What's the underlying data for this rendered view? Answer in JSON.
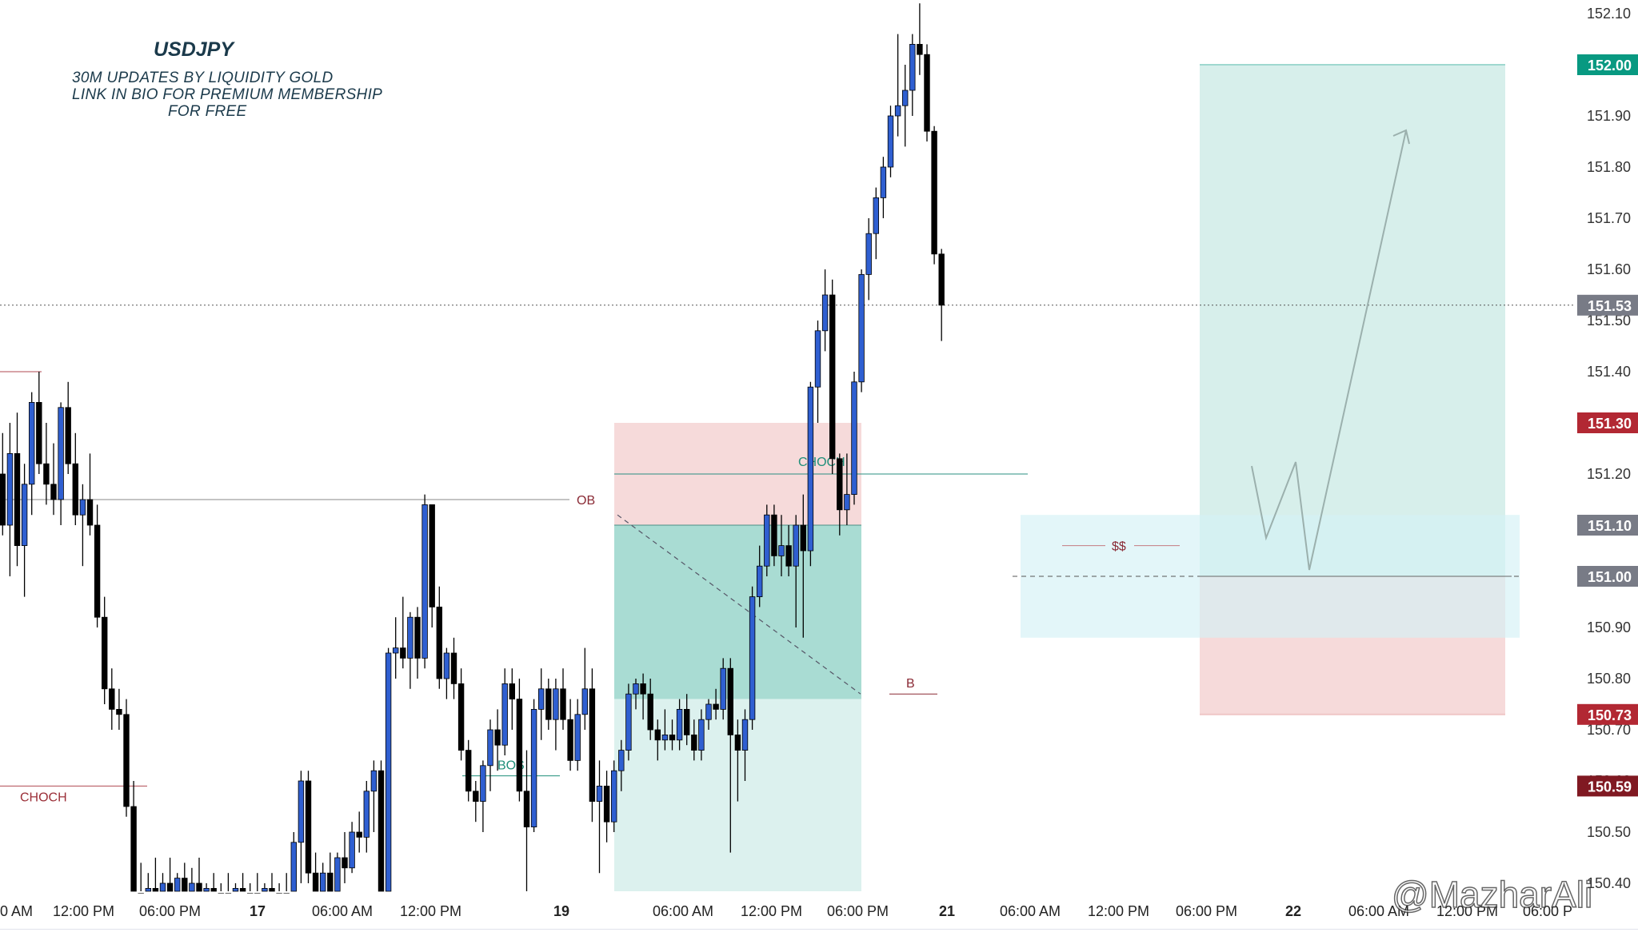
{
  "header": {
    "symbol": "USDJPY",
    "line1": "30M UPDATES BY LIQUIDITY GOLD",
    "line2": "LINK IN BIO FOR PREMIUM MEMBERSHIP",
    "line3": "FOR FREE"
  },
  "watermark": "@MazharAli",
  "colors": {
    "bull": "#2f5fd1",
    "bear": "#000000",
    "tp_zone": "#b8e4dc",
    "sl_zone": "#f6dada",
    "fvg_zone": "#d4f1f6",
    "last_price": "#787b86",
    "target_price": "#089981",
    "stop_price": "#b22833",
    "deep_stop": "#801922"
  },
  "chart_data": {
    "type": "candlestick",
    "symbol": "USDJPY",
    "timeframe": "30m",
    "y_axis": {
      "range": [
        150.35,
        152.12
      ],
      "ticks": [
        "152.10",
        "152.00",
        "151.90",
        "151.80",
        "151.70",
        "151.60",
        "151.50",
        "151.40",
        "151.30",
        "151.20",
        "151.10",
        "151.00",
        "150.90",
        "150.80",
        "150.70",
        "150.60",
        "150.50",
        "150.40"
      ]
    },
    "x_axis": {
      "ticks": [
        "0 AM",
        "12:00 PM",
        "06:00 PM",
        "17",
        "06:00 AM",
        "12:00 PM",
        "19",
        "06:00 AM",
        "12:00 PM",
        "06:00 PM",
        "21",
        "06:00 AM",
        "12:00 PM",
        "06:00 PM",
        "22",
        "06:00 AM",
        "12:00 PM",
        "06:00 P"
      ]
    },
    "price_badges": [
      {
        "label": "152.00",
        "value": 152.0,
        "kind": "target"
      },
      {
        "label": "151.53",
        "value": 151.53,
        "kind": "last"
      },
      {
        "label": "151.30",
        "value": 151.3,
        "kind": "stop"
      },
      {
        "label": "151.10",
        "value": 151.1,
        "kind": "gray"
      },
      {
        "label": "151.00",
        "value": 151.0,
        "kind": "gray"
      },
      {
        "label": "150.73",
        "value": 150.73,
        "kind": "stop"
      },
      {
        "label": "150.59",
        "value": 150.59,
        "kind": "deepstop"
      }
    ],
    "annotations": {
      "choch_left": "CHOCH",
      "ob": "OB",
      "bos": "BOS",
      "choch_mid": "CHOCH",
      "b": "B",
      "liquidity": "$$"
    },
    "zones": {
      "sell_setup": {
        "entry": 151.1,
        "stop": 151.3,
        "target": 150.37
      },
      "buy_setup": {
        "entry": 151.0,
        "stop": 150.73,
        "target": 152.0
      },
      "fvg": {
        "top": 151.12,
        "bottom": 150.88
      }
    },
    "candles": [
      [
        151.2,
        151.28,
        151.08,
        151.1
      ],
      [
        151.1,
        151.3,
        151.0,
        151.24
      ],
      [
        151.24,
        151.32,
        151.02,
        151.06
      ],
      [
        151.06,
        151.22,
        150.96,
        151.18
      ],
      [
        151.18,
        151.36,
        151.12,
        151.34
      ],
      [
        151.34,
        151.4,
        151.2,
        151.22
      ],
      [
        151.22,
        151.3,
        151.14,
        151.18
      ],
      [
        151.18,
        151.26,
        151.12,
        151.15
      ],
      [
        151.15,
        151.34,
        151.1,
        151.33
      ],
      [
        151.33,
        151.38,
        151.2,
        151.22
      ],
      [
        151.22,
        151.28,
        151.1,
        151.12
      ],
      [
        151.12,
        151.18,
        151.02,
        151.15
      ],
      [
        151.15,
        151.24,
        151.08,
        151.1
      ],
      [
        151.1,
        151.14,
        150.9,
        150.92
      ],
      [
        150.92,
        150.96,
        150.75,
        150.78
      ],
      [
        150.78,
        150.82,
        150.7,
        150.74
      ],
      [
        150.74,
        150.78,
        150.7,
        150.73
      ],
      [
        150.73,
        150.76,
        150.53,
        150.55
      ],
      [
        150.55,
        150.6,
        150.36,
        150.38
      ],
      [
        150.38,
        150.44,
        150.35,
        150.37
      ],
      [
        150.37,
        150.42,
        150.35,
        150.39
      ],
      [
        150.39,
        150.45,
        150.35,
        150.36
      ],
      [
        150.36,
        150.42,
        150.35,
        150.4
      ],
      [
        150.4,
        150.45,
        150.36,
        150.37
      ],
      [
        150.37,
        150.42,
        150.35,
        150.41
      ],
      [
        150.41,
        150.44,
        150.36,
        150.37
      ],
      [
        150.37,
        150.43,
        150.35,
        150.4
      ],
      [
        150.4,
        150.45,
        150.35,
        150.37
      ],
      [
        150.37,
        150.4,
        150.35,
        150.39
      ],
      [
        150.39,
        150.42,
        150.35,
        150.36
      ],
      [
        150.36,
        150.4,
        150.35,
        150.38
      ],
      [
        150.38,
        150.42,
        150.35,
        150.37
      ],
      [
        150.37,
        150.4,
        150.35,
        150.39
      ],
      [
        150.39,
        150.42,
        150.35,
        150.36
      ],
      [
        150.36,
        150.4,
        150.35,
        150.38
      ],
      [
        150.38,
        150.42,
        150.35,
        150.37
      ],
      [
        150.37,
        150.4,
        150.35,
        150.39
      ],
      [
        150.39,
        150.42,
        150.35,
        150.36
      ],
      [
        150.36,
        150.4,
        150.35,
        150.38
      ],
      [
        150.38,
        150.42,
        150.35,
        150.37
      ],
      [
        150.37,
        150.5,
        150.35,
        150.48
      ],
      [
        150.48,
        150.62,
        150.4,
        150.6
      ],
      [
        150.6,
        150.62,
        150.4,
        150.42
      ],
      [
        150.42,
        150.46,
        150.35,
        150.37
      ],
      [
        150.37,
        150.44,
        150.35,
        150.42
      ],
      [
        150.42,
        150.46,
        150.36,
        150.38
      ],
      [
        150.38,
        150.46,
        150.35,
        150.45
      ],
      [
        150.45,
        150.5,
        150.4,
        150.43
      ],
      [
        150.43,
        150.52,
        150.42,
        150.5
      ],
      [
        150.5,
        150.54,
        150.46,
        150.49
      ],
      [
        150.49,
        150.6,
        150.46,
        150.58
      ],
      [
        150.58,
        150.64,
        150.5,
        150.62
      ],
      [
        150.62,
        150.64,
        150.35,
        150.37
      ],
      [
        150.37,
        150.86,
        150.35,
        150.85
      ],
      [
        150.85,
        150.92,
        150.8,
        150.86
      ],
      [
        150.86,
        150.96,
        150.82,
        150.84
      ],
      [
        150.84,
        150.93,
        150.78,
        150.92
      ],
      [
        150.92,
        150.94,
        150.8,
        150.84
      ],
      [
        150.84,
        151.16,
        150.82,
        151.14
      ],
      [
        151.14,
        151.14,
        150.9,
        150.94
      ],
      [
        150.94,
        150.98,
        150.78,
        150.8
      ],
      [
        150.8,
        150.86,
        150.76,
        150.85
      ],
      [
        150.85,
        150.88,
        150.76,
        150.79
      ],
      [
        150.79,
        150.82,
        150.64,
        150.66
      ],
      [
        150.66,
        150.68,
        150.56,
        150.58
      ],
      [
        150.58,
        150.6,
        150.52,
        150.56
      ],
      [
        150.56,
        150.64,
        150.5,
        150.63
      ],
      [
        150.63,
        150.72,
        150.58,
        150.7
      ],
      [
        150.7,
        150.74,
        150.62,
        150.67
      ],
      [
        150.67,
        150.82,
        150.65,
        150.79
      ],
      [
        150.79,
        150.82,
        150.7,
        150.76
      ],
      [
        150.76,
        150.8,
        150.56,
        150.58
      ],
      [
        150.58,
        150.66,
        150.38,
        150.51
      ],
      [
        150.51,
        150.76,
        150.5,
        150.74
      ],
      [
        150.74,
        150.82,
        150.68,
        150.78
      ],
      [
        150.78,
        150.8,
        150.7,
        150.72
      ],
      [
        150.72,
        150.8,
        150.66,
        150.78
      ],
      [
        150.78,
        150.82,
        150.7,
        150.72
      ],
      [
        150.72,
        150.76,
        150.62,
        150.64
      ],
      [
        150.64,
        150.76,
        150.62,
        150.73
      ],
      [
        150.73,
        150.86,
        150.7,
        150.78
      ],
      [
        150.78,
        150.82,
        150.52,
        150.56
      ],
      [
        150.56,
        150.64,
        150.42,
        150.59
      ],
      [
        150.59,
        150.62,
        150.48,
        150.52
      ],
      [
        150.52,
        150.64,
        150.5,
        150.62
      ],
      [
        150.62,
        150.68,
        150.58,
        150.66
      ],
      [
        150.66,
        150.79,
        150.64,
        150.77
      ],
      [
        150.77,
        150.8,
        150.74,
        150.79
      ],
      [
        150.79,
        150.81,
        150.72,
        150.77
      ],
      [
        150.77,
        150.8,
        150.68,
        150.7
      ],
      [
        150.7,
        150.72,
        150.64,
        150.68
      ],
      [
        150.68,
        150.74,
        150.66,
        150.69
      ],
      [
        150.69,
        150.72,
        150.66,
        150.68
      ],
      [
        150.68,
        150.76,
        150.66,
        150.74
      ],
      [
        150.74,
        150.77,
        150.67,
        150.69
      ],
      [
        150.69,
        150.72,
        150.64,
        150.66
      ],
      [
        150.66,
        150.74,
        150.64,
        150.72
      ],
      [
        150.72,
        150.76,
        150.7,
        150.75
      ],
      [
        150.75,
        150.78,
        150.72,
        150.74
      ],
      [
        150.74,
        150.84,
        150.72,
        150.82
      ],
      [
        150.82,
        150.84,
        150.46,
        150.69
      ],
      [
        150.69,
        150.72,
        150.56,
        150.66
      ],
      [
        150.66,
        150.74,
        150.6,
        150.72
      ],
      [
        150.72,
        150.98,
        150.7,
        150.96
      ],
      [
        150.96,
        151.06,
        150.94,
        151.02
      ],
      [
        151.02,
        151.14,
        151.0,
        151.12
      ],
      [
        151.12,
        151.14,
        151.02,
        151.04
      ],
      [
        151.04,
        151.12,
        151.0,
        151.06
      ],
      [
        151.06,
        151.1,
        151.0,
        151.02
      ],
      [
        151.02,
        151.12,
        150.9,
        151.1
      ],
      [
        151.1,
        151.16,
        150.88,
        151.05
      ],
      [
        151.05,
        151.38,
        151.02,
        151.37
      ],
      [
        151.37,
        151.5,
        151.3,
        151.48
      ],
      [
        151.48,
        151.6,
        151.44,
        151.55
      ],
      [
        151.55,
        151.58,
        151.2,
        151.23
      ],
      [
        151.23,
        151.24,
        151.08,
        151.13
      ],
      [
        151.13,
        151.24,
        151.1,
        151.16
      ],
      [
        151.16,
        151.4,
        151.14,
        151.38
      ],
      [
        151.38,
        151.6,
        151.36,
        151.59
      ],
      [
        151.59,
        151.7,
        151.54,
        151.67
      ],
      [
        151.67,
        151.76,
        151.62,
        151.74
      ],
      [
        151.74,
        151.82,
        151.7,
        151.8
      ],
      [
        151.8,
        151.92,
        151.78,
        151.9
      ],
      [
        151.9,
        152.06,
        151.86,
        151.92
      ],
      [
        151.92,
        152.0,
        151.84,
        151.95
      ],
      [
        151.95,
        152.06,
        151.9,
        152.04
      ],
      [
        152.04,
        152.12,
        151.98,
        152.02
      ],
      [
        152.02,
        152.04,
        151.85,
        151.87
      ],
      [
        151.87,
        151.88,
        151.61,
        151.63
      ],
      [
        151.63,
        151.64,
        151.46,
        151.53
      ]
    ]
  }
}
